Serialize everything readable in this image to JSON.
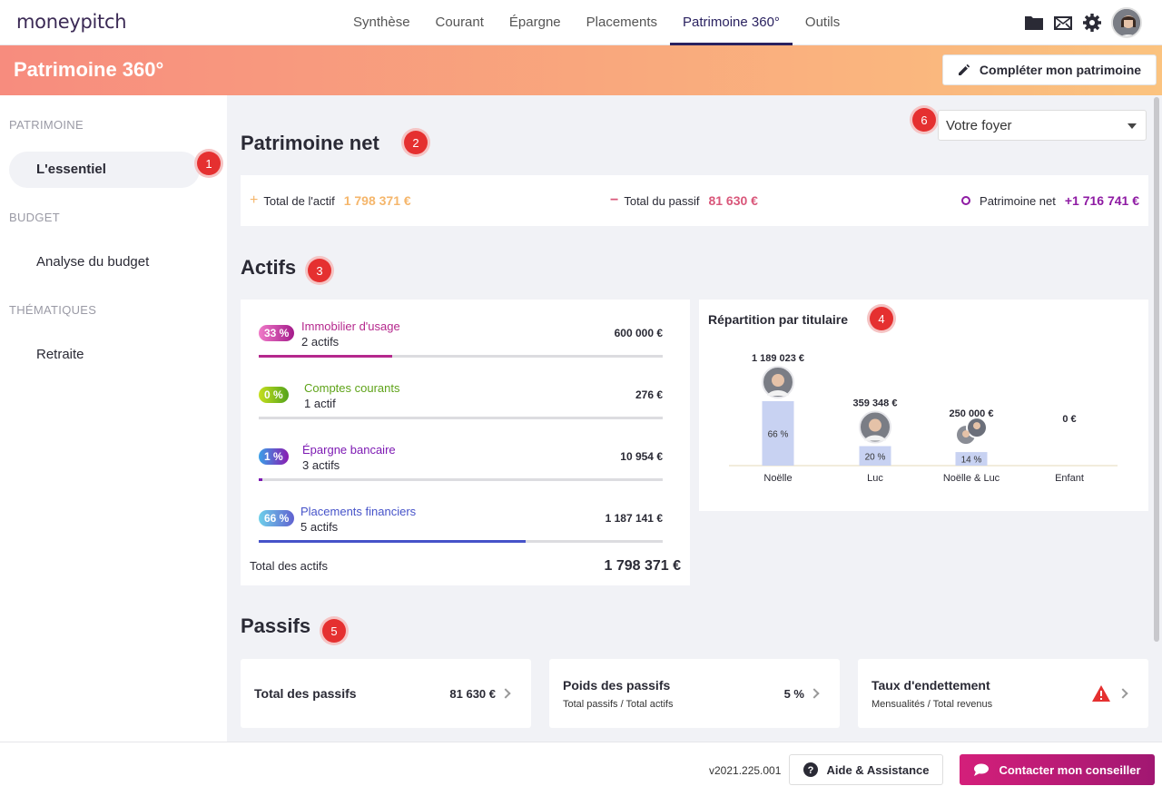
{
  "app": {
    "logo": "moneypitch"
  },
  "nav": {
    "tabs": [
      {
        "label": "Synthèse"
      },
      {
        "label": "Courant"
      },
      {
        "label": "Épargne"
      },
      {
        "label": "Placements"
      },
      {
        "label": "Patrimoine 360°",
        "active": true
      },
      {
        "label": "Outils"
      }
    ],
    "icons": [
      "folder-icon",
      "mail-icon",
      "gear-icon",
      "avatar"
    ]
  },
  "header": {
    "title": "Patrimoine 360°",
    "complete_button": "Compléter mon patrimoine"
  },
  "sidebar": {
    "sections": [
      {
        "title": "PATRIMOINE",
        "items": [
          {
            "label": "L'essentiel",
            "active": true
          }
        ]
      },
      {
        "title": "BUDGET",
        "items": [
          {
            "label": "Analyse du budget"
          }
        ]
      },
      {
        "title": "THÉMATIQUES",
        "items": [
          {
            "label": "Retraite"
          }
        ]
      }
    ]
  },
  "badges": [
    "1",
    "2",
    "3",
    "4",
    "5",
    "6"
  ],
  "foyer_select": {
    "value": "Votre foyer"
  },
  "patrimoine_net": {
    "title": "Patrimoine net",
    "actif_label": "Total de l'actif",
    "actif_value": "1 798 371 €",
    "passif_label": "Total du passif",
    "passif_value": "81 630 €",
    "net_label": "Patrimoine net",
    "net_value": "+1 716 741 €",
    "colors": {
      "actif": "#f5b66b",
      "passif": "#d9577a",
      "net": "#8e1aa3"
    }
  },
  "actifs": {
    "title": "Actifs",
    "rows": [
      {
        "pct": "33 %",
        "fraction": 0.33,
        "label": "Immobilier d'usage",
        "count": "2 actifs",
        "value": "600 000 €",
        "color": "#b5288d",
        "pill_from": "#f07ac8",
        "pill_to": "#a41b8a"
      },
      {
        "pct": "0 %",
        "fraction": 0.0,
        "label": "Comptes courants",
        "count": "1 actif",
        "value": "276 €",
        "color": "#5fa319",
        "pill_from": "#c6df1f",
        "pill_to": "#52a31b"
      },
      {
        "pct": "1 %",
        "fraction": 0.01,
        "label": "Épargne bancaire",
        "count": "3 actifs",
        "value": "10 954 €",
        "color": "#7d1ab3",
        "pill_from": "#3aa0e8",
        "pill_to": "#8a19b0"
      },
      {
        "pct": "66 %",
        "fraction": 0.66,
        "label": "Placements financiers",
        "count": "5 actifs",
        "value": "1 187 141 €",
        "color": "#4653c9",
        "pill_from": "#6ed0ea",
        "pill_to": "#6061d0"
      }
    ],
    "total_label": "Total des actifs",
    "total_value": "1 798 371 €"
  },
  "repartition": {
    "title": "Répartition par titulaire",
    "chart_data": {
      "type": "bar",
      "categories": [
        "Noëlle",
        "Luc",
        "Noëlle & Luc",
        "Enfant"
      ],
      "values": [
        1189023,
        359348,
        250000,
        0
      ],
      "value_labels": [
        "1 189 023 €",
        "359 348 €",
        "250 000 €",
        "0 €"
      ],
      "pct_labels": [
        "66 %",
        "20 %",
        "14 %",
        ""
      ],
      "bar_color": "#c8d2f2"
    }
  },
  "passifs": {
    "title": "Passifs",
    "cards": [
      {
        "title": "Total des passifs",
        "value": "81 630 €",
        "sub": ""
      },
      {
        "title": "Poids des passifs",
        "value": "5 %",
        "sub": "Total passifs / Total actifs"
      },
      {
        "title": "Taux d'endettement",
        "value": "",
        "sub": "Mensualités / Total revenus",
        "warning": true
      }
    ]
  },
  "footer": {
    "version": "v2021.225.001",
    "help_button": "Aide & Assistance",
    "contact_button": "Contacter mon conseiller"
  }
}
